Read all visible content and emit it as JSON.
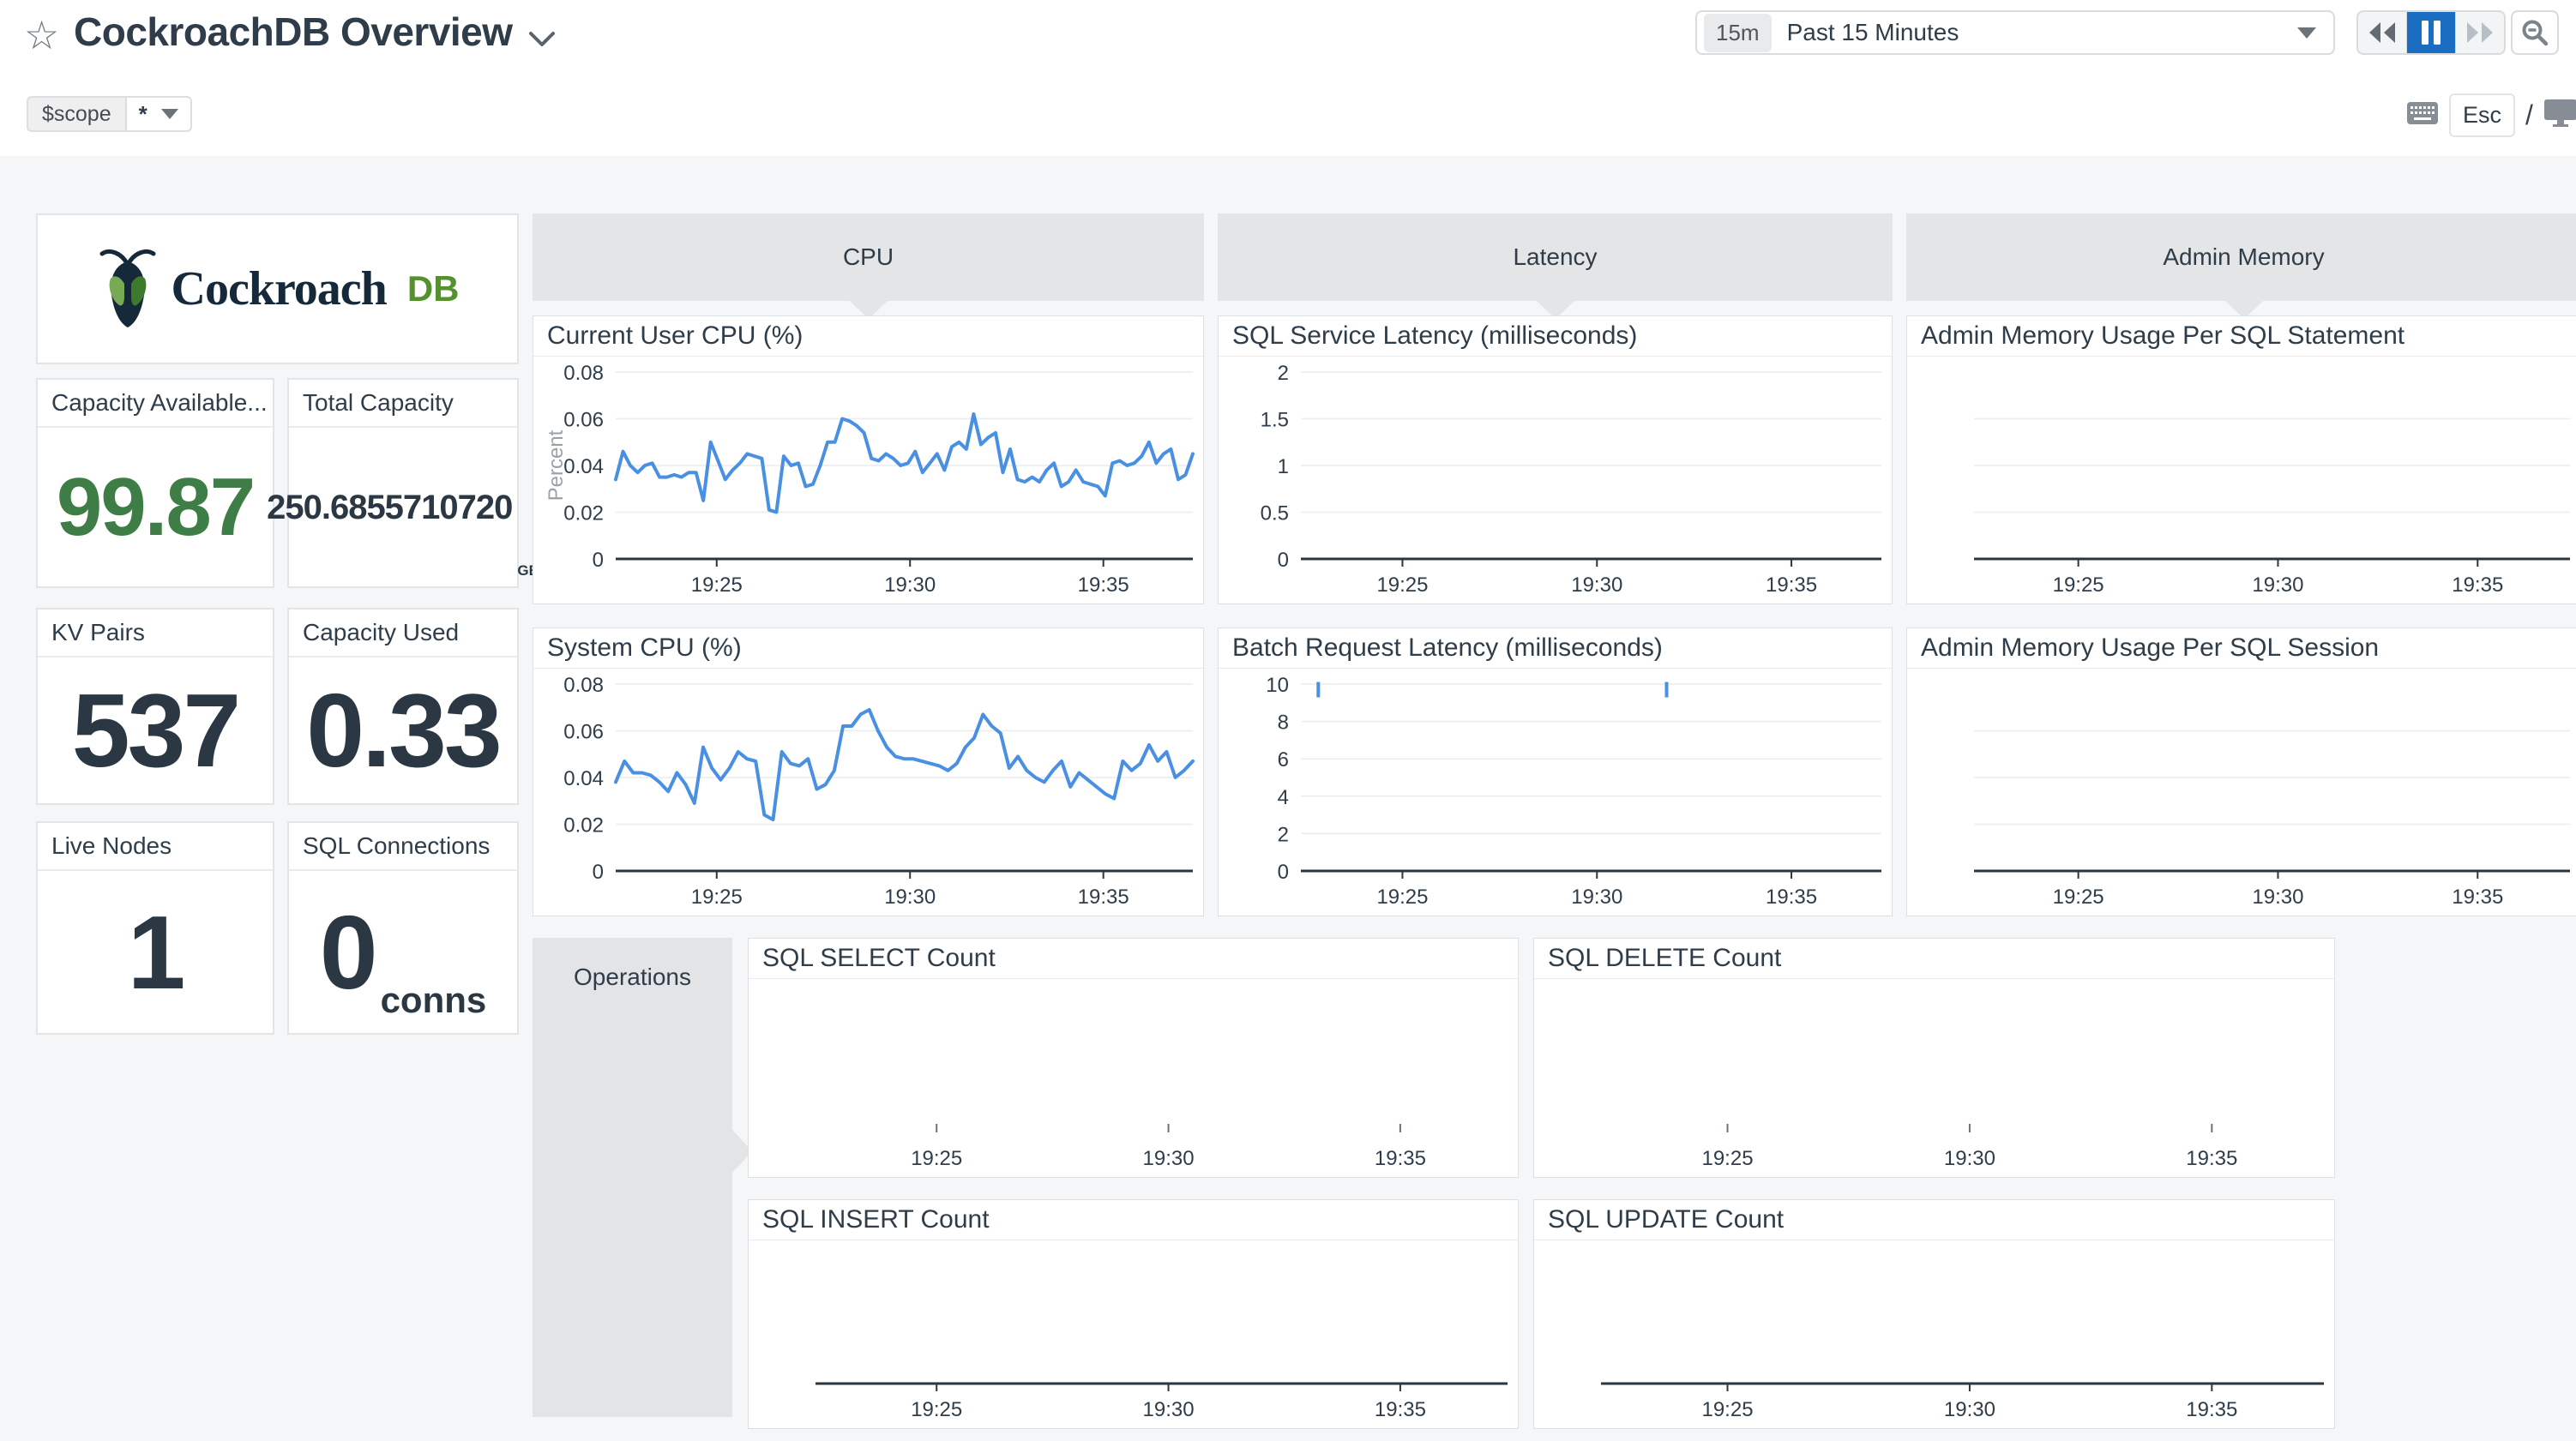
{
  "header": {
    "title": "CockroachDB Overview",
    "scope": {
      "name": "$scope",
      "value": "*"
    },
    "time_range": {
      "badge": "15m",
      "label": "Past 15 Minutes"
    },
    "esc_label": "Esc",
    "slash": "/"
  },
  "logo": {
    "brand": "Cockroach",
    "suffix": "DB"
  },
  "stat_cards": {
    "capacity_available": {
      "label": "Capacity Available...",
      "value": "99.87"
    },
    "total_capacity": {
      "label": "Total Capacity",
      "value": "250.6855710720",
      "unit": "GB"
    },
    "kv_pairs": {
      "label": "KV Pairs",
      "value": "537"
    },
    "capacity_used": {
      "label": "Capacity Used",
      "value": "0.33"
    },
    "live_nodes": {
      "label": "Live Nodes",
      "value": "1"
    },
    "sql_connections": {
      "label": "SQL Connections",
      "value": "0",
      "unit": "conns"
    }
  },
  "sections": {
    "cpu": "CPU",
    "latency": "Latency",
    "admin_memory": "Admin Memory",
    "operations": "Operations"
  },
  "colors": {
    "accent_blue": "#4a90e2",
    "active_blue": "#1b6dc2",
    "green": "#3e7e46",
    "navy": "#2b3844",
    "grid": "#ebeced",
    "axis": "#2a3640"
  },
  "chart_data": [
    {
      "id": "current_user_cpu",
      "type": "line",
      "title": "Current User CPU (%)",
      "ylabel": "Percent",
      "ylim": [
        0,
        0.08
      ],
      "yticks": [
        "0",
        "0.02",
        "0.04",
        "0.06",
        "0.08"
      ],
      "xticks": [
        "19:25",
        "19:30",
        "19:35"
      ],
      "values": [
        0.034,
        0.046,
        0.04,
        0.037,
        0.04,
        0.041,
        0.035,
        0.035,
        0.036,
        0.035,
        0.037,
        0.037,
        0.025,
        0.05,
        0.042,
        0.034,
        0.038,
        0.041,
        0.045,
        0.044,
        0.043,
        0.021,
        0.02,
        0.044,
        0.04,
        0.041,
        0.031,
        0.032,
        0.04,
        0.05,
        0.05,
        0.06,
        0.059,
        0.057,
        0.054,
        0.043,
        0.042,
        0.045,
        0.043,
        0.04,
        0.041,
        0.046,
        0.037,
        0.041,
        0.045,
        0.038,
        0.048,
        0.05,
        0.047,
        0.062,
        0.049,
        0.052,
        0.054,
        0.037,
        0.047,
        0.034,
        0.033,
        0.035,
        0.033,
        0.038,
        0.041,
        0.031,
        0.033,
        0.038,
        0.033,
        0.032,
        0.031,
        0.027,
        0.041,
        0.042,
        0.04,
        0.041,
        0.044,
        0.05,
        0.041,
        0.045,
        0.047,
        0.034,
        0.036,
        0.045
      ]
    },
    {
      "id": "sql_service_latency",
      "type": "line",
      "title": "SQL Service Latency (milliseconds)",
      "ylim": [
        0,
        2
      ],
      "yticks": [
        "0",
        "0.5",
        "1",
        "1.5",
        "2"
      ],
      "xticks": [
        "19:25",
        "19:30",
        "19:35"
      ],
      "values": []
    },
    {
      "id": "admin_mem_statement",
      "type": "line",
      "title": "Admin Memory Usage Per SQL Statement",
      "gridcount": 3,
      "baseline": true,
      "xticks": [
        "19:25",
        "19:30",
        "19:35"
      ],
      "values": []
    },
    {
      "id": "system_cpu",
      "type": "line",
      "title": "System CPU (%)",
      "ylim": [
        0,
        0.08
      ],
      "yticks": [
        "0",
        "0.02",
        "0.04",
        "0.06",
        "0.08"
      ],
      "xticks": [
        "19:25",
        "19:30",
        "19:35"
      ],
      "values": [
        0.038,
        0.047,
        0.042,
        0.042,
        0.041,
        0.038,
        0.034,
        0.042,
        0.037,
        0.029,
        0.053,
        0.044,
        0.039,
        0.044,
        0.051,
        0.048,
        0.047,
        0.024,
        0.022,
        0.051,
        0.046,
        0.045,
        0.048,
        0.035,
        0.037,
        0.043,
        0.062,
        0.062,
        0.067,
        0.069,
        0.06,
        0.053,
        0.049,
        0.048,
        0.048,
        0.047,
        0.046,
        0.045,
        0.043,
        0.046,
        0.053,
        0.057,
        0.067,
        0.062,
        0.059,
        0.044,
        0.049,
        0.043,
        0.04,
        0.038,
        0.043,
        0.047,
        0.036,
        0.042,
        0.039,
        0.036,
        0.033,
        0.031,
        0.047,
        0.043,
        0.046,
        0.054,
        0.047,
        0.051,
        0.04,
        0.043,
        0.047
      ]
    },
    {
      "id": "batch_request_latency",
      "type": "line",
      "title": "Batch Request Latency (milliseconds)",
      "ylim": [
        0,
        10
      ],
      "yticks": [
        "0",
        "2",
        "4",
        "6",
        "8",
        "10"
      ],
      "xticks": [
        "19:25",
        "19:30",
        "19:35"
      ],
      "values": [],
      "marks": [
        {
          "x": 0.03,
          "y": 9.7
        },
        {
          "x": 0.63,
          "y": 9.7
        }
      ]
    },
    {
      "id": "admin_mem_session",
      "type": "line",
      "title": "Admin Memory Usage Per SQL Session",
      "gridcount": 3,
      "baseline": true,
      "xticks": [
        "19:25",
        "19:30",
        "19:35"
      ],
      "values": []
    },
    {
      "id": "sql_select_count",
      "type": "line",
      "title": "SQL SELECT Count",
      "ticksonly": true,
      "xticks": [
        "19:25",
        "19:30",
        "19:35"
      ],
      "values": []
    },
    {
      "id": "sql_delete_count",
      "type": "line",
      "title": "SQL DELETE Count",
      "ticksonly": true,
      "xticks": [
        "19:25",
        "19:30",
        "19:35"
      ],
      "values": []
    },
    {
      "id": "sql_insert_count",
      "type": "line",
      "title": "SQL INSERT Count",
      "baseline": true,
      "xticks": [
        "19:25",
        "19:30",
        "19:35"
      ],
      "values": []
    },
    {
      "id": "sql_update_count",
      "type": "line",
      "title": "SQL UPDATE Count",
      "baseline": true,
      "xticks": [
        "19:25",
        "19:30",
        "19:35"
      ],
      "values": []
    }
  ]
}
